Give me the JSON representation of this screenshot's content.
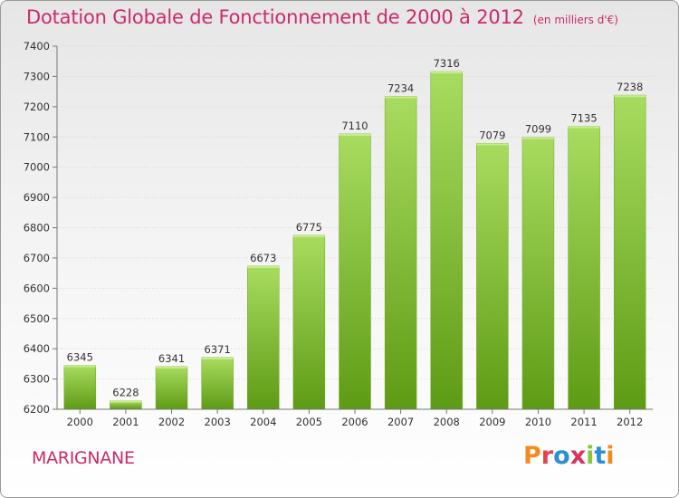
{
  "header": {
    "title": "Dotation Globale de Fonctionnement de 2000 à 2012",
    "subtitle": "(en milliers d'€)"
  },
  "footer": {
    "city": "MARIGNANE",
    "brand": "Proxiti",
    "brand_colors": [
      "#f28c1e",
      "#e0434f",
      "#2b8fd6",
      "#d9325d",
      "#8cc63f",
      "#2b8fd6",
      "#f28c1e"
    ]
  },
  "chart_data": {
    "type": "bar",
    "title": "Dotation Globale de Fonctionnement de 2000 à 2012",
    "subtitle": "(en milliers d'€)",
    "xlabel": "",
    "ylabel": "",
    "categories": [
      "2000",
      "2001",
      "2002",
      "2003",
      "2004",
      "2005",
      "2006",
      "2007",
      "2008",
      "2009",
      "2010",
      "2011",
      "2012"
    ],
    "values": [
      6345,
      6228,
      6341,
      6371,
      6673,
      6775,
      7110,
      7234,
      7316,
      7079,
      7099,
      7135,
      7238
    ],
    "value_labels": [
      "6345",
      "6228",
      "6341",
      "6371",
      "6673",
      "6775",
      "7110",
      "7234",
      "7316",
      "7079",
      "7099",
      "7135",
      "7238"
    ],
    "ylim": [
      6200,
      7400
    ],
    "yticks": [
      "6200",
      "6300",
      "6400",
      "6500",
      "6600",
      "6700",
      "6800",
      "6900",
      "7000",
      "7100",
      "7200",
      "7300",
      "7400"
    ],
    "grid": true,
    "bar_color_light": "#a8dc60",
    "bar_color_dark": "#5e9b14"
  }
}
